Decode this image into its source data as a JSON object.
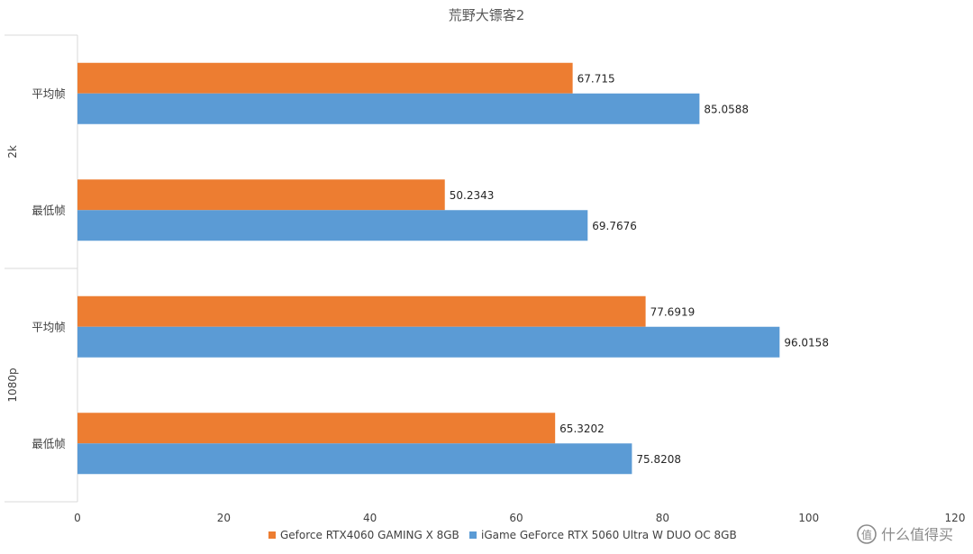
{
  "chart_data": {
    "type": "bar",
    "orientation": "horizontal",
    "title": "荒野大镖客2",
    "groups": [
      {
        "name": "2k",
        "categories": [
          "平均帧",
          "最低帧"
        ]
      },
      {
        "name": "1080p",
        "categories": [
          "平均帧",
          "最低帧"
        ]
      }
    ],
    "series": [
      {
        "name": "Geforce RTX4060 GAMING X 8GB",
        "color": "#ED7D31",
        "values": [
          67.715,
          50.2343,
          77.6919,
          65.3202
        ],
        "labels": [
          "67.715",
          "50.2343",
          "77.6919",
          "65.3202"
        ]
      },
      {
        "name": "iGame GeForce RTX 5060 Ultra W DUO OC 8GB",
        "color": "#5B9BD5",
        "values": [
          85.0588,
          69.7676,
          96.0158,
          75.8208
        ],
        "labels": [
          "85.0588",
          "69.7676",
          "96.0158",
          "75.8208"
        ]
      }
    ],
    "xlim": [
      0,
      120
    ],
    "xticks": [
      "0",
      "20",
      "40",
      "60",
      "80",
      "100",
      "120"
    ],
    "legend_position": "bottom",
    "grid": false
  },
  "watermark": {
    "text": "什么值得买",
    "icon": "smzdm-logo-icon"
  }
}
